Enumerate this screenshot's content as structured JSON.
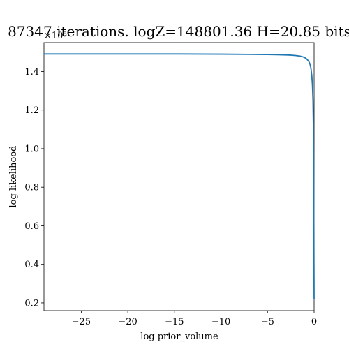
{
  "chart_data": {
    "type": "line",
    "title": "87347 iterations. logZ=148801.36 H=20.85 bits",
    "xlabel": "log prior_volume",
    "ylabel": "log likelihood",
    "y_offset_label": "×10⁵",
    "xlim": [
      -29,
      0
    ],
    "ylim": [
      0.16,
      1.55
    ],
    "x_ticks": [
      -25,
      -20,
      -15,
      -10,
      -5,
      0
    ],
    "x_tick_labels": [
      "−25",
      "−20",
      "−15",
      "−10",
      "−5",
      "0"
    ],
    "y_ticks": [
      0.2,
      0.4,
      0.6,
      0.8,
      1.0,
      1.2,
      1.4
    ],
    "y_tick_labels": [
      "0.2",
      "0.4",
      "0.6",
      "0.8",
      "1.0",
      "1.2",
      "1.4"
    ],
    "grid": false,
    "series": [
      {
        "color": "#1f77b4",
        "x": [
          -29,
          -25,
          -20,
          -15,
          -10,
          -7,
          -5,
          -4,
          -3,
          -2.5,
          -2,
          -1.5,
          -1.2,
          -1.0,
          -0.8,
          -0.6,
          -0.45,
          -0.35,
          -0.25,
          -0.18,
          -0.12,
          -0.08,
          -0.05,
          -0.03,
          -0.015,
          0
        ],
        "y": [
          1.491,
          1.491,
          1.491,
          1.491,
          1.49,
          1.489,
          1.488,
          1.487,
          1.486,
          1.485,
          1.483,
          1.48,
          1.476,
          1.472,
          1.465,
          1.455,
          1.44,
          1.42,
          1.38,
          1.33,
          1.25,
          1.12,
          0.92,
          0.65,
          0.4,
          0.22
        ]
      }
    ]
  }
}
